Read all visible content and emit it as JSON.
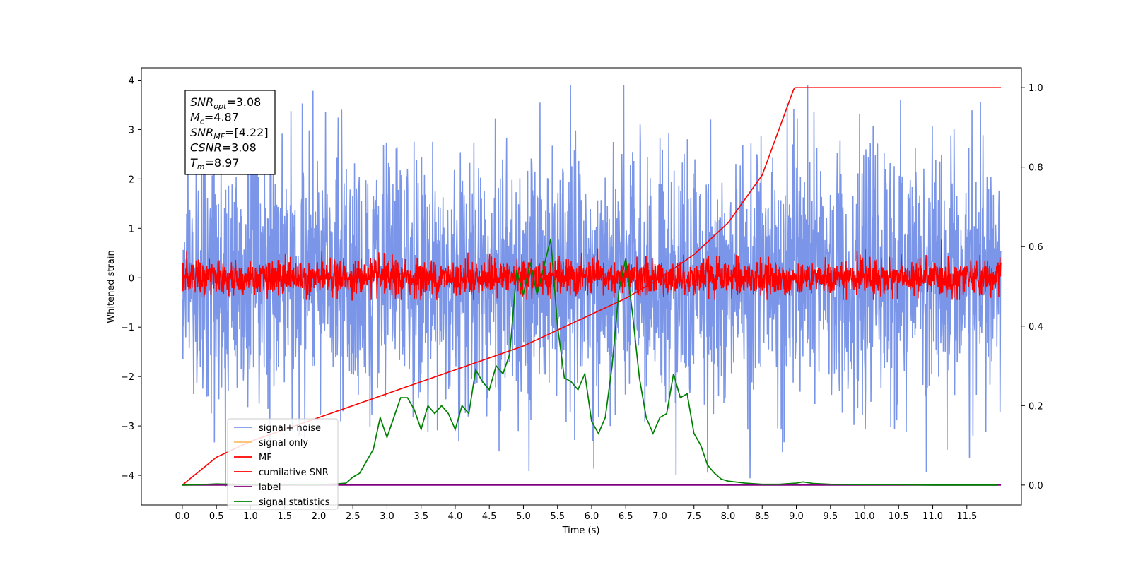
{
  "chart_data": {
    "type": "line",
    "xlabel": "Time (s)",
    "ylabel": "Whitened strain",
    "xlim": [
      -0.6,
      12.3
    ],
    "ylim": [
      -4.6,
      4.25
    ],
    "ylim_right": [
      -0.05,
      1.05
    ],
    "grid": false,
    "legend_position": "lower-left",
    "x_ticks": [
      "0.0",
      "0.5",
      "1.0",
      "1.5",
      "2.0",
      "2.5",
      "3.0",
      "3.5",
      "4.0",
      "4.5",
      "5.0",
      "5.5",
      "6.0",
      "6.5",
      "7.0",
      "7.5",
      "8.0",
      "8.5",
      "9.0",
      "9.5",
      "10.0",
      "10.5",
      "11.0",
      "11.5"
    ],
    "y_ticks": [
      "4",
      "3",
      "2",
      "1",
      "0",
      "−1",
      "−2",
      "−3",
      "−4"
    ],
    "y_ticks_right": [
      "1.0",
      "0.8",
      "0.6",
      "0.4",
      "0.2",
      "0.0"
    ],
    "info_box": [
      {
        "base": "SNR",
        "sub": "opt",
        "value": "=3.08"
      },
      {
        "base": "M",
        "sub": "c",
        "value": "=4.87"
      },
      {
        "base": "SNR",
        "sub": "MF",
        "value": "=[4.22]"
      },
      {
        "base": "CSNR",
        "sub": "",
        "value": "=3.08"
      },
      {
        "base": "T",
        "sub": "m",
        "value": "=8.97"
      }
    ],
    "series": [
      {
        "name": "signal+ noise",
        "color": "#7b96e8",
        "axis": "left",
        "x_range": [
          0,
          12.0
        ],
        "amplitude_std": 1.3,
        "note_peak": [
          -4.3,
          3.9
        ]
      },
      {
        "name": "signal only",
        "color": "#ffbe66",
        "axis": "left",
        "values": []
      },
      {
        "name": "MF",
        "color": "#ff0000",
        "axis": "left",
        "x_range": [
          0,
          12.0
        ],
        "amplitude_std": 0.18,
        "note_peak": [
          -0.45,
          0.95
        ]
      },
      {
        "name": "cumilative SNR",
        "color": "#ff0000",
        "axis": "right",
        "x": [
          0,
          0.5,
          1.0,
          2.0,
          3.0,
          4.0,
          5.0,
          6.0,
          6.5,
          7.0,
          7.5,
          8.0,
          8.5,
          8.97,
          12.0
        ],
        "values": [
          0.0,
          0.07,
          0.11,
          0.17,
          0.23,
          0.29,
          0.35,
          0.43,
          0.47,
          0.52,
          0.58,
          0.66,
          0.78,
          1.0,
          1.0
        ]
      },
      {
        "name": "label",
        "color": "#800080",
        "axis": "right",
        "x": [
          0,
          12.0
        ],
        "values": [
          0.0,
          0.0
        ]
      },
      {
        "name": "signal statistics",
        "color": "#008000",
        "axis": "right",
        "x": [
          0.0,
          0.25,
          0.5,
          0.75,
          1.0,
          1.25,
          1.5,
          1.75,
          2.0,
          2.25,
          2.4,
          2.5,
          2.6,
          2.7,
          2.8,
          2.9,
          3.0,
          3.1,
          3.2,
          3.3,
          3.4,
          3.5,
          3.6,
          3.7,
          3.8,
          3.9,
          4.0,
          4.1,
          4.2,
          4.3,
          4.4,
          4.5,
          4.6,
          4.7,
          4.8,
          4.9,
          5.0,
          5.1,
          5.2,
          5.3,
          5.4,
          5.5,
          5.6,
          5.7,
          5.8,
          5.9,
          6.0,
          6.1,
          6.2,
          6.3,
          6.4,
          6.5,
          6.6,
          6.7,
          6.8,
          6.9,
          7.0,
          7.1,
          7.2,
          7.3,
          7.4,
          7.5,
          7.6,
          7.7,
          7.8,
          7.9,
          8.0,
          8.25,
          8.5,
          8.75,
          9.0,
          9.1,
          9.25,
          9.5,
          10.0,
          10.5,
          11.0,
          11.5,
          11.95
        ],
        "values": [
          0.0,
          0.001,
          0.003,
          0.002,
          0.001,
          0.001,
          0.002,
          0.001,
          0.001,
          0.003,
          0.005,
          0.02,
          0.03,
          0.06,
          0.09,
          0.17,
          0.12,
          0.17,
          0.22,
          0.22,
          0.19,
          0.14,
          0.2,
          0.18,
          0.2,
          0.18,
          0.14,
          0.2,
          0.18,
          0.29,
          0.26,
          0.24,
          0.3,
          0.28,
          0.33,
          0.54,
          0.48,
          0.56,
          0.48,
          0.55,
          0.62,
          0.4,
          0.27,
          0.26,
          0.24,
          0.28,
          0.16,
          0.13,
          0.17,
          0.3,
          0.49,
          0.57,
          0.43,
          0.27,
          0.17,
          0.13,
          0.17,
          0.18,
          0.28,
          0.22,
          0.23,
          0.13,
          0.1,
          0.05,
          0.03,
          0.015,
          0.01,
          0.005,
          0.002,
          0.002,
          0.005,
          0.008,
          0.004,
          0.002,
          0.001,
          0.001,
          0.0,
          0.0,
          0.0
        ]
      }
    ]
  }
}
